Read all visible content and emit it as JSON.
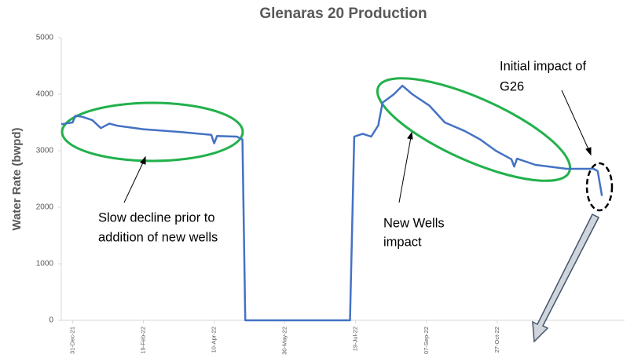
{
  "chart_data": {
    "type": "line",
    "title": "Glenaras 20 Production",
    "y_label": "Water Rate (bwpd)",
    "x": [
      "2021-12-23",
      "2021-12-31",
      "2022-01-02",
      "2022-01-07",
      "2022-01-14",
      "2022-01-20",
      "2022-01-26",
      "2022-02-01",
      "2022-02-19",
      "2022-03-18",
      "2022-04-08",
      "2022-04-10",
      "2022-04-12",
      "2022-04-26",
      "2022-04-30",
      "2022-05-02",
      "2022-07-15",
      "2022-07-18",
      "2022-07-24",
      "2022-07-30",
      "2022-08-04",
      "2022-08-07",
      "2022-08-15",
      "2022-08-21",
      "2022-08-28",
      "2022-09-09",
      "2022-09-20",
      "2022-10-04",
      "2022-10-15",
      "2022-10-26",
      "2022-11-06",
      "2022-11-08",
      "2022-11-10",
      "2022-11-23",
      "2022-12-15",
      "2023-01-03",
      "2023-01-06",
      "2023-01-09"
    ],
    "series": [
      {
        "name": "Water Rate",
        "color": "#4472c4",
        "values": [
          3470,
          3500,
          3620,
          3600,
          3540,
          3400,
          3480,
          3440,
          3380,
          3330,
          3280,
          3130,
          3260,
          3250,
          3200,
          0,
          0,
          3250,
          3300,
          3250,
          3450,
          3850,
          4000,
          4150,
          4000,
          3800,
          3500,
          3350,
          3200,
          3000,
          2850,
          2720,
          2860,
          2750,
          2680,
          2680,
          2640,
          2200
        ]
      }
    ],
    "xlim": [
      "2021-12-23",
      "2023-01-25"
    ],
    "xticks": [
      {
        "value": "2021-12-31",
        "label": "31-Dec-21"
      },
      {
        "value": "2022-02-19",
        "label": "19-Feb-22"
      },
      {
        "value": "2022-04-10",
        "label": "10-Apr-22"
      },
      {
        "value": "2022-05-30",
        "label": "30-May-22"
      },
      {
        "value": "2022-07-19",
        "label": "19-Jul-22"
      },
      {
        "value": "2022-09-07",
        "label": "07-Sep-22"
      },
      {
        "value": "2022-10-27",
        "label": "27-Oct-22"
      }
    ],
    "ylim": [
      0,
      5000
    ],
    "yticks": [
      0,
      1000,
      2000,
      3000,
      4000,
      5000
    ],
    "grid": false,
    "annotations": [
      {
        "lines": [
          "Slow decline prior to",
          "addition of new wells"
        ]
      },
      {
        "lines": [
          "New Wells",
          "impact"
        ]
      },
      {
        "lines": [
          "Initial impact of",
          "G26"
        ]
      }
    ]
  }
}
